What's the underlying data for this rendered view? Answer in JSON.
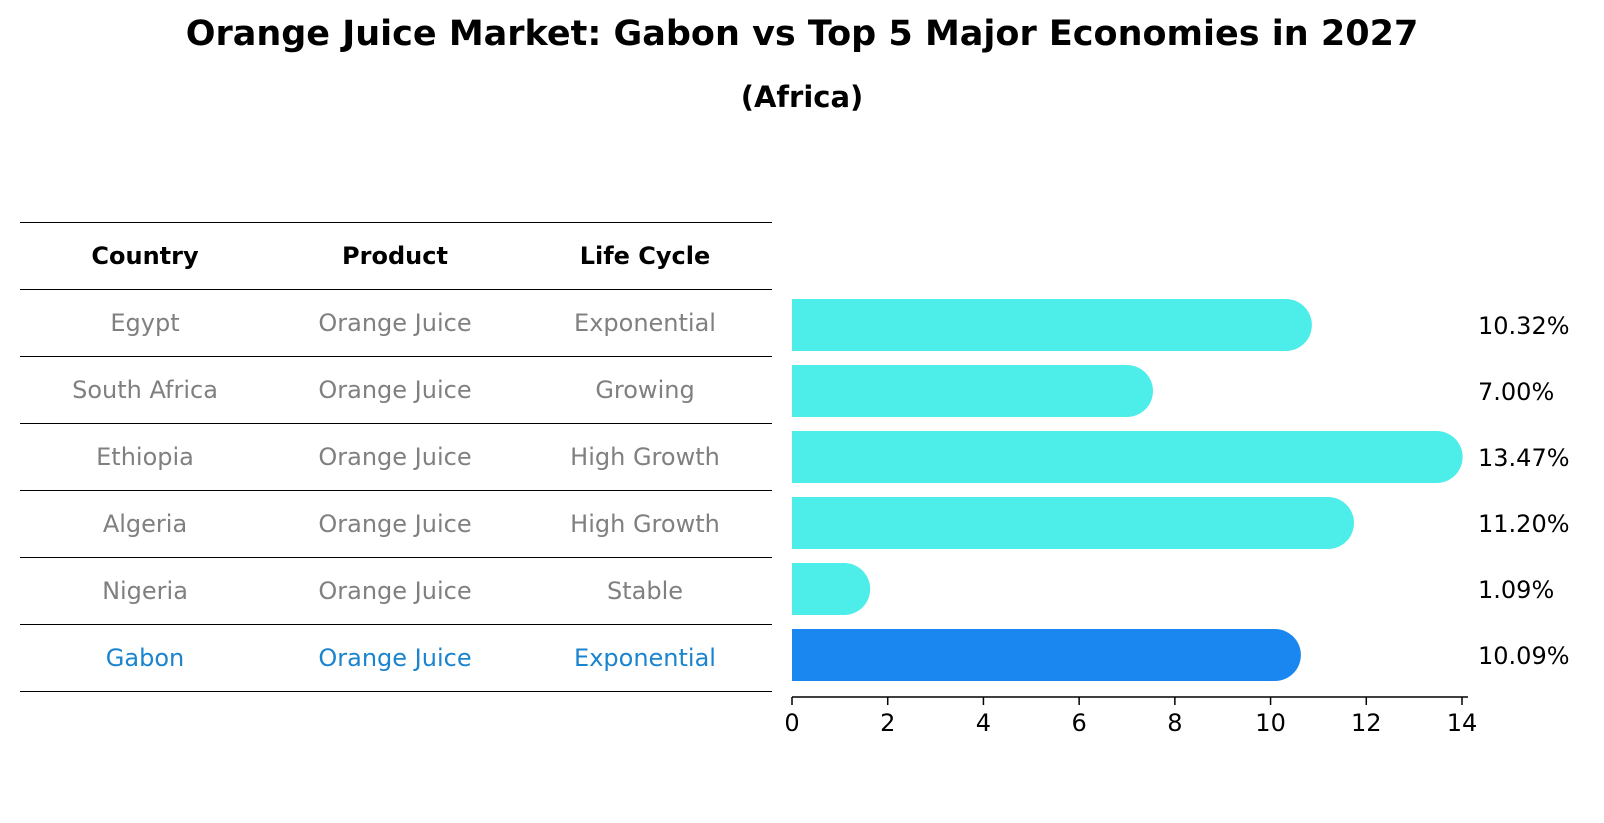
{
  "chart_data": {
    "type": "table",
    "title": "Orange Juice Market: Gabon vs Top 5 Major Economies in 2027",
    "subtitle": "(Africa)",
    "columns": [
      "Country",
      "Product",
      "Life Cycle"
    ],
    "rows": [
      {
        "country": "Egypt",
        "product": "Orange Juice",
        "life_cycle": "Exponential",
        "value": 10.32,
        "label": "10.32%",
        "highlight": false
      },
      {
        "country": "South Africa",
        "product": "Orange Juice",
        "life_cycle": "Growing",
        "value": 7.0,
        "label": "7.00%",
        "highlight": false
      },
      {
        "country": "Ethiopia",
        "product": "Orange Juice",
        "life_cycle": "High Growth",
        "value": 13.47,
        "label": "13.47%",
        "highlight": false
      },
      {
        "country": "Algeria",
        "product": "Orange Juice",
        "life_cycle": "High Growth",
        "value": 11.2,
        "label": "11.20%",
        "highlight": false
      },
      {
        "country": "Nigeria",
        "product": "Orange Juice",
        "life_cycle": "Stable",
        "value": 1.09,
        "label": "1.09%",
        "highlight": false
      },
      {
        "country": "Gabon",
        "product": "Orange Juice",
        "life_cycle": "Exponential",
        "value": 10.09,
        "label": "10.09%",
        "highlight": true
      }
    ],
    "xlim": [
      0,
      14
    ],
    "xticks": [
      0,
      2,
      4,
      6,
      8,
      10,
      12,
      14
    ],
    "colors": {
      "bar": "#4deeea",
      "highlight_bar": "#1a86f0",
      "highlight_text": "#1a84cf",
      "text_muted": "#808080"
    }
  }
}
